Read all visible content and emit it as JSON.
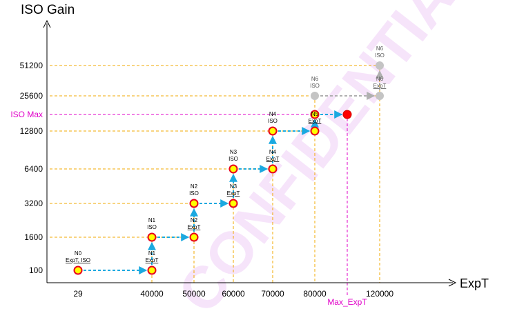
{
  "chart_data": {
    "type": "line",
    "ylabel": "ISO Gain",
    "xlabel": "ExpT",
    "y_ticks": [
      "51200",
      "25600",
      "ISO Max",
      "12800",
      "6400",
      "3200",
      "1600",
      "100"
    ],
    "x_ticks": [
      "29",
      "40000",
      "50000",
      "60000",
      "70000",
      "80000",
      "Max_ExpT",
      "120000"
    ],
    "nodes": [
      {
        "label": [
          "N0",
          "ExpT, ISO"
        ],
        "x": "29",
        "y": "100",
        "style": "yellow"
      },
      {
        "label": [
          "N1",
          "ExpT"
        ],
        "x": "40000",
        "y": "100",
        "style": "yellow"
      },
      {
        "label": [
          "N1",
          "ISO"
        ],
        "x": "40000",
        "y": "1600",
        "style": "yellow"
      },
      {
        "label": [
          "N2",
          "ExpT"
        ],
        "x": "50000",
        "y": "1600",
        "style": "yellow"
      },
      {
        "label": [
          "N2",
          "ISO"
        ],
        "x": "50000",
        "y": "3200",
        "style": "yellow"
      },
      {
        "label": [
          "N3",
          "ExpT"
        ],
        "x": "60000",
        "y": "3200",
        "style": "yellow"
      },
      {
        "label": [
          "N3",
          "ISO"
        ],
        "x": "60000",
        "y": "6400",
        "style": "yellow"
      },
      {
        "label": [
          "N4",
          "ExpT"
        ],
        "x": "70000",
        "y": "6400",
        "style": "yellow"
      },
      {
        "label": [
          "N4",
          "ISO"
        ],
        "x": "70000",
        "y": "12800",
        "style": "yellow"
      },
      {
        "label": [
          "N5",
          "ExpT"
        ],
        "x": "80000",
        "y": "12800",
        "style": "yellow"
      },
      {
        "label": [],
        "x": "80000",
        "y": "ISO Max",
        "style": "yellow"
      },
      {
        "label": [],
        "x": "Max_ExpT",
        "y": "ISO Max",
        "style": "red"
      },
      {
        "label": [
          "N6",
          "ISO"
        ],
        "x": "80000",
        "y": "25600",
        "style": "gray"
      },
      {
        "label": [
          "N6",
          "ExpT"
        ],
        "x": "120000",
        "y": "25600",
        "style": "gray"
      },
      {
        "label": [
          "N6",
          "ISO"
        ],
        "x": "120000",
        "y": "51200",
        "style": "gray"
      }
    ],
    "path_blue": [
      [
        0,
        1
      ],
      [
        1,
        2
      ],
      [
        2,
        3
      ],
      [
        3,
        4
      ],
      [
        4,
        5
      ],
      [
        5,
        6
      ],
      [
        6,
        7
      ],
      [
        7,
        8
      ],
      [
        8,
        9
      ],
      [
        9,
        10
      ],
      [
        10,
        11
      ]
    ],
    "path_gray": [
      [
        12,
        13
      ],
      [
        13,
        14
      ]
    ],
    "magenta_ticks": [
      "ISO Max",
      "Max_ExpT"
    ],
    "watermark": "CONFIDENTIAL"
  }
}
